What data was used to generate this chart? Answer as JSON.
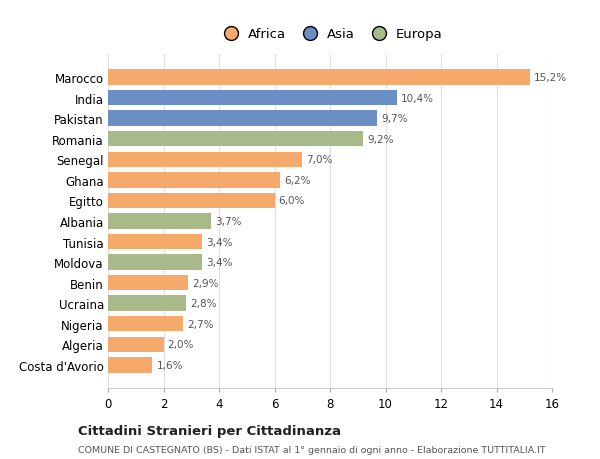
{
  "countries": [
    "Costa d'Avorio",
    "Algeria",
    "Nigeria",
    "Ucraina",
    "Benin",
    "Moldova",
    "Tunisia",
    "Albania",
    "Egitto",
    "Ghana",
    "Senegal",
    "Romania",
    "Pakistan",
    "India",
    "Marocco"
  ],
  "values": [
    1.6,
    2.0,
    2.7,
    2.8,
    2.9,
    3.4,
    3.4,
    3.7,
    6.0,
    6.2,
    7.0,
    9.2,
    9.7,
    10.4,
    15.2
  ],
  "labels": [
    "1,6%",
    "2,0%",
    "2,7%",
    "2,8%",
    "2,9%",
    "3,4%",
    "3,4%",
    "3,7%",
    "6,0%",
    "6,2%",
    "7,0%",
    "9,2%",
    "9,7%",
    "10,4%",
    "15,2%"
  ],
  "continent": [
    "Africa",
    "Africa",
    "Africa",
    "Europa",
    "Africa",
    "Europa",
    "Africa",
    "Europa",
    "Africa",
    "Africa",
    "Africa",
    "Europa",
    "Asia",
    "Asia",
    "Africa"
  ],
  "colors": {
    "Africa": "#F5A96B",
    "Asia": "#6B8FC4",
    "Europa": "#A8BA8A"
  },
  "xlim": [
    0,
    16
  ],
  "xticks": [
    0,
    2,
    4,
    6,
    8,
    10,
    12,
    14,
    16
  ],
  "title": "Cittadini Stranieri per Cittadinanza",
  "subtitle": "COMUNE DI CASTEGNATO (BS) - Dati ISTAT al 1° gennaio di ogni anno - Elaborazione TUTTITALIA.IT",
  "bg_color": "#ffffff",
  "legend_labels": [
    "Africa",
    "Asia",
    "Europa"
  ],
  "legend_colors": [
    "#F5A96B",
    "#6B8FC4",
    "#A8BA8A"
  ]
}
